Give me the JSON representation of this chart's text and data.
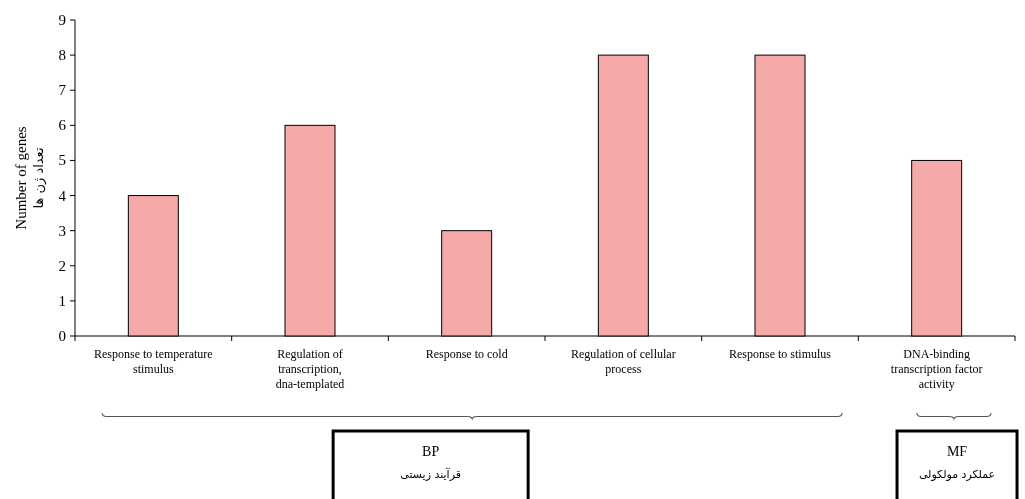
{
  "chart_data": {
    "type": "bar",
    "ylabel": "Number of genes",
    "categories": [
      "Response to temperature stimulus",
      "Regulation of transcription, dna-templated",
      "Response to cold",
      "Regulation of cellular process",
      "Response to stimulus",
      "DNA-binding transcription factor activity"
    ],
    "values": [
      4,
      6,
      3,
      8,
      8,
      5
    ],
    "color": "#f5a9a9",
    "ylim": [
      0,
      9
    ],
    "yticks": [
      0,
      1,
      2,
      3,
      4,
      5,
      6,
      7,
      8,
      9
    ],
    "annotations": [
      "تعداد ژن ها",
      "BP",
      "قرآیند زیستی",
      "MF",
      "عملکرد مولکولی"
    ]
  }
}
